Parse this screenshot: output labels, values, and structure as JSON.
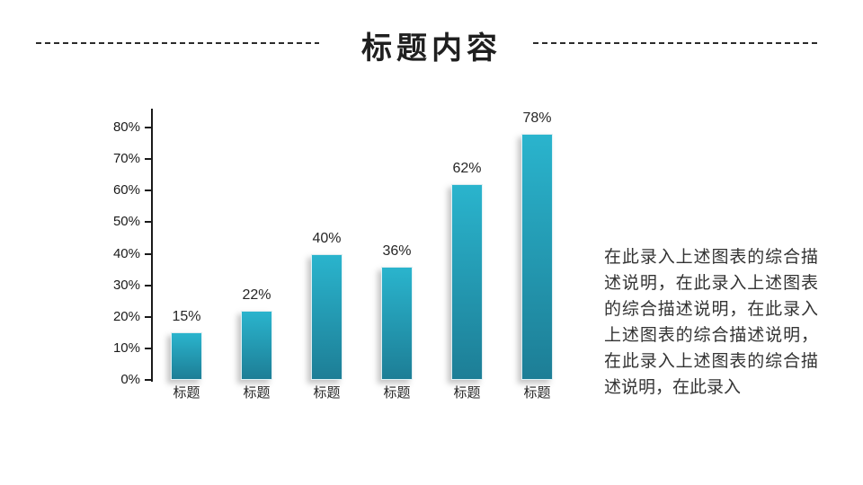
{
  "title": "标题内容",
  "chart_data": {
    "type": "bar",
    "title": "",
    "categories": [
      "标题",
      "标题",
      "标题",
      "标题",
      "标题",
      "标题"
    ],
    "values": [
      15,
      22,
      40,
      36,
      62,
      78
    ],
    "value_labels": [
      "15%",
      "22%",
      "40%",
      "36%",
      "62%",
      "78%"
    ],
    "xlabel": "",
    "ylabel": "",
    "ylim": [
      0,
      80
    ],
    "y_ticks": [
      "0%",
      "10%",
      "20%",
      "30%",
      "40%",
      "50%",
      "60%",
      "70%",
      "80%"
    ],
    "grid": false,
    "legend": "none",
    "bar_color_top": "#2ab4cd",
    "bar_color_bottom": "#1d7e96",
    "axis_color": "#1a1a1a"
  },
  "description": {
    "text": "在此录入上述图表的综合描述说明，在此录入上述图表的综合描述说明，在此录入上述图表的综合描述说明，在此录入上述图表的综合描述说明，在此录入"
  }
}
